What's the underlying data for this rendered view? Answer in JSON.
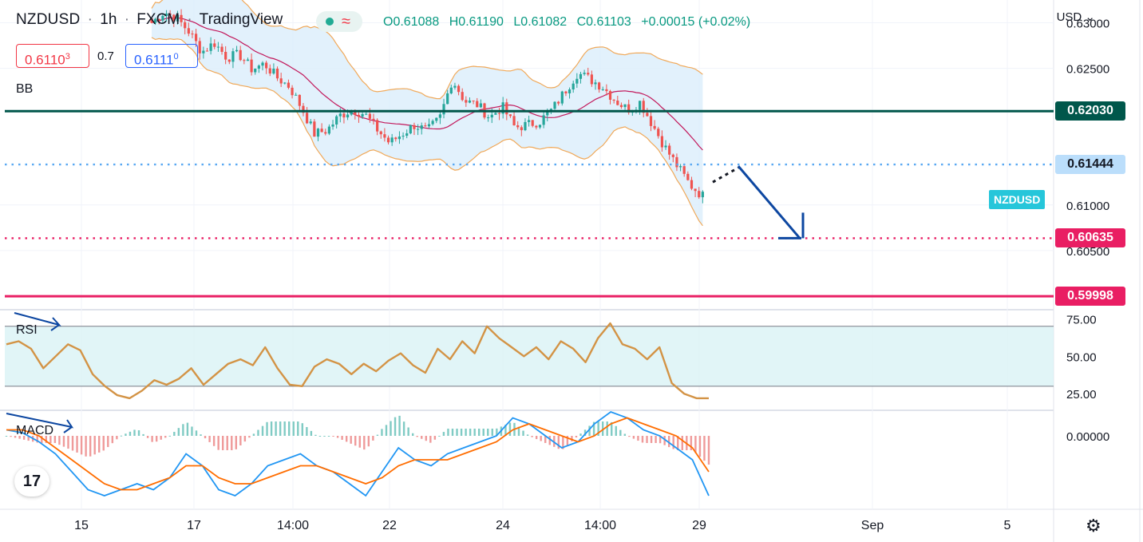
{
  "header": {
    "symbol": "NZDUSD",
    "interval": "1h",
    "exchange": "FXCM",
    "source": "TradingView",
    "open": "O0.61088",
    "high": "H0.61190",
    "low": "L0.61082",
    "close": "C0.61103",
    "change": "+0.00015 (+0.02%)",
    "wave_glyph": "≈"
  },
  "quote": {
    "bid_main": "0.6110",
    "bid_sup": "3",
    "spread": "0.7",
    "ask_main": "0.6111",
    "ask_sup": "0"
  },
  "currency": "USD",
  "indicators": {
    "bb": "BB",
    "rsi": "RSI",
    "macd": "MACD"
  },
  "symbol_tag": "NZDUSD",
  "levels": [
    {
      "value": "0.62030",
      "color": "#00574b",
      "style": "solid"
    },
    {
      "value": "0.61444",
      "color": "#59a8f2",
      "style": "dotted"
    },
    {
      "value": "0.60635",
      "color": "#e91e63",
      "style": "dotted"
    },
    {
      "value": "0.59998",
      "color": "#e91e63",
      "style": "solid"
    }
  ],
  "colors": {
    "up": "#26a69a",
    "down": "#ef5350",
    "bb_basis": "#c2185b",
    "bb_band": "#f0a95a",
    "bb_fill": "#dbeefb",
    "rsi_line": "#d39345",
    "rsi_zone": "#d9f2f5",
    "macd_line": "#2196f3",
    "signal_line": "#ff6d00",
    "arrow": "#0d47a1"
  },
  "chart_data": [
    {
      "type": "candlestick",
      "panel": "price",
      "ylim": [
        0.5985,
        0.6325
      ],
      "y_ticks": [
        "0.63000",
        "0.62500",
        "0.61000",
        "0.60500"
      ],
      "x_ticks": [
        "15",
        "17",
        "14:00",
        "22",
        "24",
        "14:00",
        "29",
        "Sep",
        "5"
      ],
      "close_path": [
        0.63,
        0.6312,
        0.6305,
        0.629,
        0.6268,
        0.6278,
        0.6262,
        0.6265,
        0.6249,
        0.6255,
        0.624,
        0.623,
        0.6206,
        0.6178,
        0.6182,
        0.6198,
        0.6205,
        0.62,
        0.6183,
        0.6168,
        0.6178,
        0.6188,
        0.6181,
        0.6195,
        0.6238,
        0.6214,
        0.621,
        0.6196,
        0.6208,
        0.6185,
        0.6188,
        0.6192,
        0.6205,
        0.6225,
        0.6245,
        0.6238,
        0.623,
        0.6215,
        0.6205,
        0.6213,
        0.6188,
        0.6163,
        0.6142,
        0.6122,
        0.611
      ]
    },
    {
      "type": "line",
      "panel": "rsi",
      "ylim": [
        15,
        80
      ],
      "y_ticks": [
        "75.00",
        "50.00",
        "25.00"
      ],
      "zone": [
        30,
        70
      ],
      "values": [
        58,
        60,
        55,
        42,
        50,
        58,
        54,
        38,
        30,
        24,
        22,
        27,
        34,
        31,
        35,
        42,
        31,
        38,
        45,
        48,
        44,
        56,
        42,
        31,
        30,
        43,
        48,
        45,
        38,
        45,
        40,
        47,
        52,
        44,
        39,
        55,
        48,
        60,
        52,
        70,
        62,
        56,
        50,
        56,
        48,
        60,
        55,
        46,
        62,
        72,
        58,
        55,
        48,
        56,
        32,
        25,
        22,
        22
      ]
    },
    {
      "type": "line",
      "panel": "macd",
      "ylim": [
        -0.0012,
        0.0004
      ],
      "y_ticks": [
        "0.00000"
      ],
      "macd": [
        0.0001,
        5e-05,
        -0.0001,
        -0.0003,
        -0.0006,
        -0.0009,
        -0.001,
        -0.0009,
        -0.0008,
        -0.0009,
        -0.0007,
        -0.0003,
        -0.0005,
        -0.0009,
        -0.001,
        -0.0008,
        -0.0005,
        -0.0004,
        -0.0003,
        -0.0005,
        -0.0006,
        -0.0008,
        -0.001,
        -0.0006,
        -0.0002,
        -0.0004,
        -0.0005,
        -0.0003,
        -0.0002,
        -0.0001,
        0.0,
        0.0003,
        0.0002,
        0.0,
        -0.0002,
        -0.0001,
        0.0002,
        0.0004,
        0.0003,
        0.0001,
        0.0,
        -0.0002,
        -0.0004,
        -0.001
      ],
      "signal": [
        0.0001,
        0.0001,
        0.0,
        -0.0002,
        -0.0004,
        -0.0006,
        -0.0008,
        -0.0009,
        -0.0009,
        -0.0008,
        -0.0007,
        -0.0005,
        -0.0005,
        -0.0007,
        -0.0008,
        -0.0008,
        -0.0007,
        -0.0006,
        -0.0005,
        -0.0005,
        -0.0006,
        -0.0007,
        -0.0008,
        -0.0007,
        -0.0005,
        -0.0004,
        -0.0004,
        -0.0004,
        -0.0003,
        -0.0002,
        -0.0001,
        0.0001,
        0.0002,
        0.0001,
        0.0,
        -0.0001,
        0.0,
        0.0002,
        0.0003,
        0.0002,
        0.0001,
        0.0,
        -0.0002,
        -0.0006
      ]
    }
  ]
}
